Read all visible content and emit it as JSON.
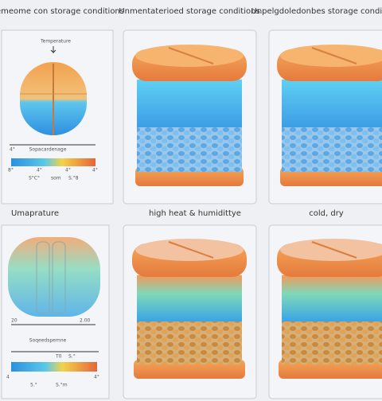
{
  "top_row": [
    {
      "title": "Cemeome con storage conditions"
    },
    {
      "title": "Unmentaterioed storage conditions"
    },
    {
      "title": "Unpelgdoledonbes storage conditions"
    }
  ],
  "bottom_row": [
    {
      "title": "Umaprature"
    },
    {
      "title": "high heat & humidittye"
    },
    {
      "title": "cold, dry"
    }
  ],
  "panel_1": {
    "label": "Temperature",
    "axis_start": "4°",
    "axis_label": "Sopacardenage",
    "scale": [
      "8°",
      "4°",
      "4°",
      "4°"
    ],
    "scale_sub": [
      "S°C°",
      "som",
      "S.°8"
    ]
  },
  "panel_4": {
    "left_mark": "20",
    "right_mark": "2.00",
    "axis_label": "Soqeedspemne",
    "axis_top": [
      "T0",
      "S.°"
    ],
    "scale": [
      "4",
      "4°"
    ],
    "scale_sub": [
      "5.°",
      "S.°m"
    ]
  }
}
